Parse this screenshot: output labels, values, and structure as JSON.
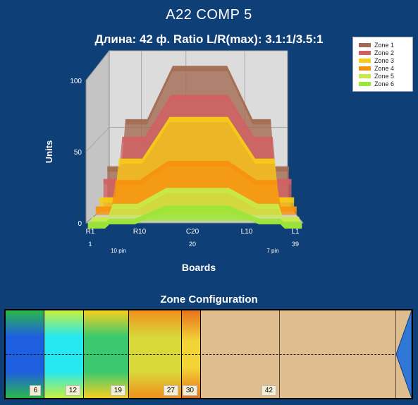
{
  "title": "A22 COMP 5",
  "subtitle": "Длина: 42 ф.  Ratio L/R(max): 3.1:1/3.5:1",
  "chart_data": {
    "type": "area",
    "ylabel": "Units",
    "xlabel": "Boards",
    "ylim": [
      0,
      100
    ],
    "yticks": [
      "0",
      "50",
      "100"
    ],
    "x_tick_labels": [
      "R1",
      "R10",
      "C20",
      "L10",
      "L1"
    ],
    "board_numbers": [
      "1",
      "20",
      "39"
    ],
    "pin_labels": [
      "10 pin",
      "7 pin"
    ],
    "legend_position": "top-right",
    "series": [
      {
        "name": "Zone 1",
        "color": "#a2694f",
        "edge": 22,
        "mid": 53,
        "center": 88
      },
      {
        "name": "Zone 2",
        "color": "#d26063",
        "edge": 16,
        "mid": 44,
        "center": 72
      },
      {
        "name": "Zone 3",
        "color": "#f7cd16",
        "edge": 6,
        "mid": 32,
        "center": 60
      },
      {
        "name": "Zone 4",
        "color": "#f7920f",
        "edge": 2,
        "mid": 20,
        "center": 33
      },
      {
        "name": "Zone 5",
        "color": "#c8ea4a",
        "edge": -3,
        "mid": 6,
        "center": 17
      },
      {
        "name": "Zone 6",
        "color": "#9ce53a",
        "edge": -5,
        "mid": -2,
        "center": 7
      }
    ]
  },
  "zone_config": {
    "title": "Zone Configuration",
    "labels": [
      "6",
      "12",
      "19",
      "27",
      "30",
      "42"
    ]
  }
}
